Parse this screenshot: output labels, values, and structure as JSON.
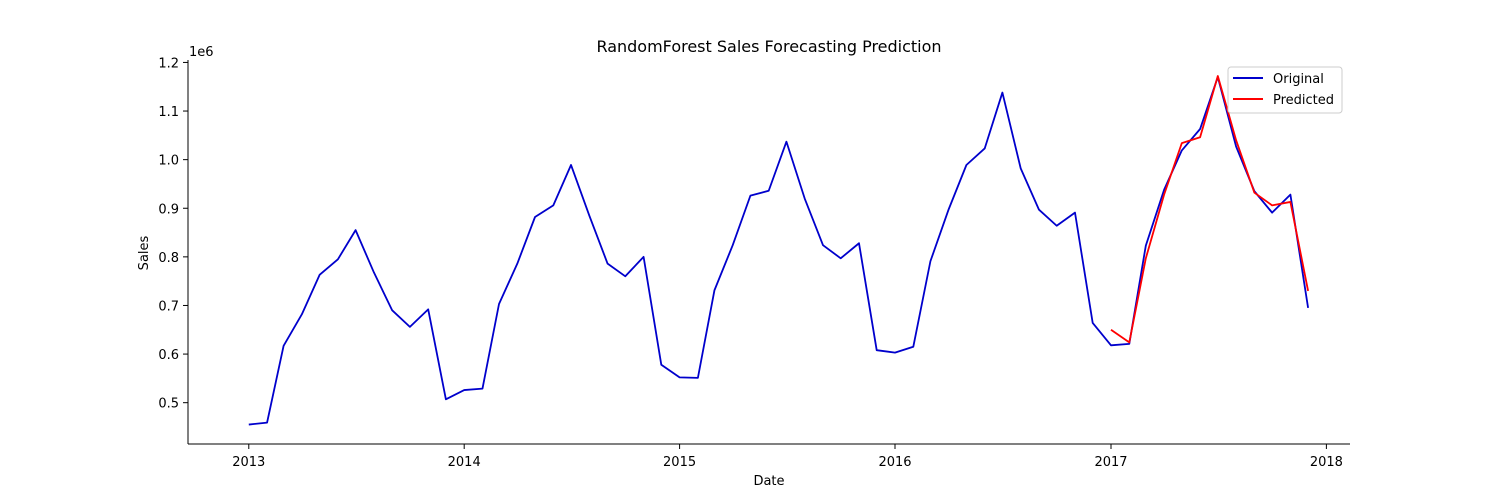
{
  "chart_data": {
    "type": "line",
    "title": "RandomForest Sales Forecasting Prediction",
    "xlabel": "Date",
    "ylabel": "Sales",
    "y_offset_label": "1e6",
    "xlim": [
      "2012-09-20",
      "2018-02-10"
    ],
    "ylim": [
      0.415,
      1.205
    ],
    "x_ticks": [
      {
        "date": "2013-01-01",
        "label": "2013"
      },
      {
        "date": "2014-01-01",
        "label": "2014"
      },
      {
        "date": "2015-01-01",
        "label": "2015"
      },
      {
        "date": "2016-01-01",
        "label": "2016"
      },
      {
        "date": "2017-01-01",
        "label": "2017"
      },
      {
        "date": "2018-01-01",
        "label": "2018"
      }
    ],
    "y_ticks": [
      {
        "value": 0.5,
        "label": "0.5"
      },
      {
        "value": 0.6,
        "label": "0.6"
      },
      {
        "value": 0.7,
        "label": "0.7"
      },
      {
        "value": 0.8,
        "label": "0.8"
      },
      {
        "value": 0.9,
        "label": "0.9"
      },
      {
        "value": 1.0,
        "label": "1.0"
      },
      {
        "value": 1.1,
        "label": "1.1"
      },
      {
        "value": 1.2,
        "label": "1.2"
      }
    ],
    "grid": false,
    "legend_position": "top-right",
    "series": [
      {
        "name": "Original",
        "color": "#0000cc",
        "points": [
          [
            "2013-01-01",
            0.455
          ],
          [
            "2013-02-01",
            0.459
          ],
          [
            "2013-03-01",
            0.617
          ],
          [
            "2013-04-01",
            0.682
          ],
          [
            "2013-05-01",
            0.763
          ],
          [
            "2013-06-01",
            0.795
          ],
          [
            "2013-07-01",
            0.855
          ],
          [
            "2013-08-01",
            0.768
          ],
          [
            "2013-09-01",
            0.69
          ],
          [
            "2013-10-01",
            0.656
          ],
          [
            "2013-11-01",
            0.692
          ],
          [
            "2013-12-01",
            0.507
          ],
          [
            "2014-01-01",
            0.526
          ],
          [
            "2014-02-01",
            0.529
          ],
          [
            "2014-03-01",
            0.703
          ],
          [
            "2014-04-01",
            0.786
          ],
          [
            "2014-05-01",
            0.882
          ],
          [
            "2014-06-01",
            0.906
          ],
          [
            "2014-07-01",
            0.989
          ],
          [
            "2014-08-01",
            0.885
          ],
          [
            "2014-09-01",
            0.786
          ],
          [
            "2014-10-01",
            0.76
          ],
          [
            "2014-11-01",
            0.8
          ],
          [
            "2014-12-01",
            0.578
          ],
          [
            "2015-01-01",
            0.552
          ],
          [
            "2015-02-01",
            0.551
          ],
          [
            "2015-03-01",
            0.731
          ],
          [
            "2015-04-01",
            0.824
          ],
          [
            "2015-05-01",
            0.926
          ],
          [
            "2015-06-01",
            0.936
          ],
          [
            "2015-07-01",
            1.037
          ],
          [
            "2015-08-01",
            0.92
          ],
          [
            "2015-09-01",
            0.824
          ],
          [
            "2015-10-01",
            0.797
          ],
          [
            "2015-11-01",
            0.828
          ],
          [
            "2015-12-01",
            0.608
          ],
          [
            "2016-01-01",
            0.603
          ],
          [
            "2016-02-01",
            0.615
          ],
          [
            "2016-03-01",
            0.791
          ],
          [
            "2016-04-01",
            0.898
          ],
          [
            "2016-05-01",
            0.989
          ],
          [
            "2016-06-01",
            1.023
          ],
          [
            "2016-07-01",
            1.138
          ],
          [
            "2016-08-01",
            0.982
          ],
          [
            "2016-09-01",
            0.897
          ],
          [
            "2016-10-01",
            0.864
          ],
          [
            "2016-11-01",
            0.891
          ],
          [
            "2016-12-01",
            0.664
          ],
          [
            "2017-01-01",
            0.618
          ],
          [
            "2017-02-01",
            0.621
          ],
          [
            "2017-03-01",
            0.823
          ],
          [
            "2017-04-01",
            0.938
          ],
          [
            "2017-05-01",
            1.019
          ],
          [
            "2017-06-01",
            1.063
          ],
          [
            "2017-07-01",
            1.17
          ],
          [
            "2017-08-01",
            1.027
          ],
          [
            "2017-09-01",
            0.935
          ],
          [
            "2017-10-01",
            0.891
          ],
          [
            "2017-11-01",
            0.928
          ],
          [
            "2017-12-01",
            0.695
          ]
        ]
      },
      {
        "name": "Predicted",
        "color": "#ff0000",
        "points": [
          [
            "2017-01-01",
            0.65
          ],
          [
            "2017-02-01",
            0.624
          ],
          [
            "2017-03-01",
            0.797
          ],
          [
            "2017-04-01",
            0.928
          ],
          [
            "2017-05-01",
            1.034
          ],
          [
            "2017-06-01",
            1.046
          ],
          [
            "2017-07-01",
            1.172
          ],
          [
            "2017-08-01",
            1.04
          ],
          [
            "2017-09-01",
            0.932
          ],
          [
            "2017-10-01",
            0.906
          ],
          [
            "2017-11-01",
            0.913
          ],
          [
            "2017-12-01",
            0.73
          ]
        ]
      }
    ]
  }
}
